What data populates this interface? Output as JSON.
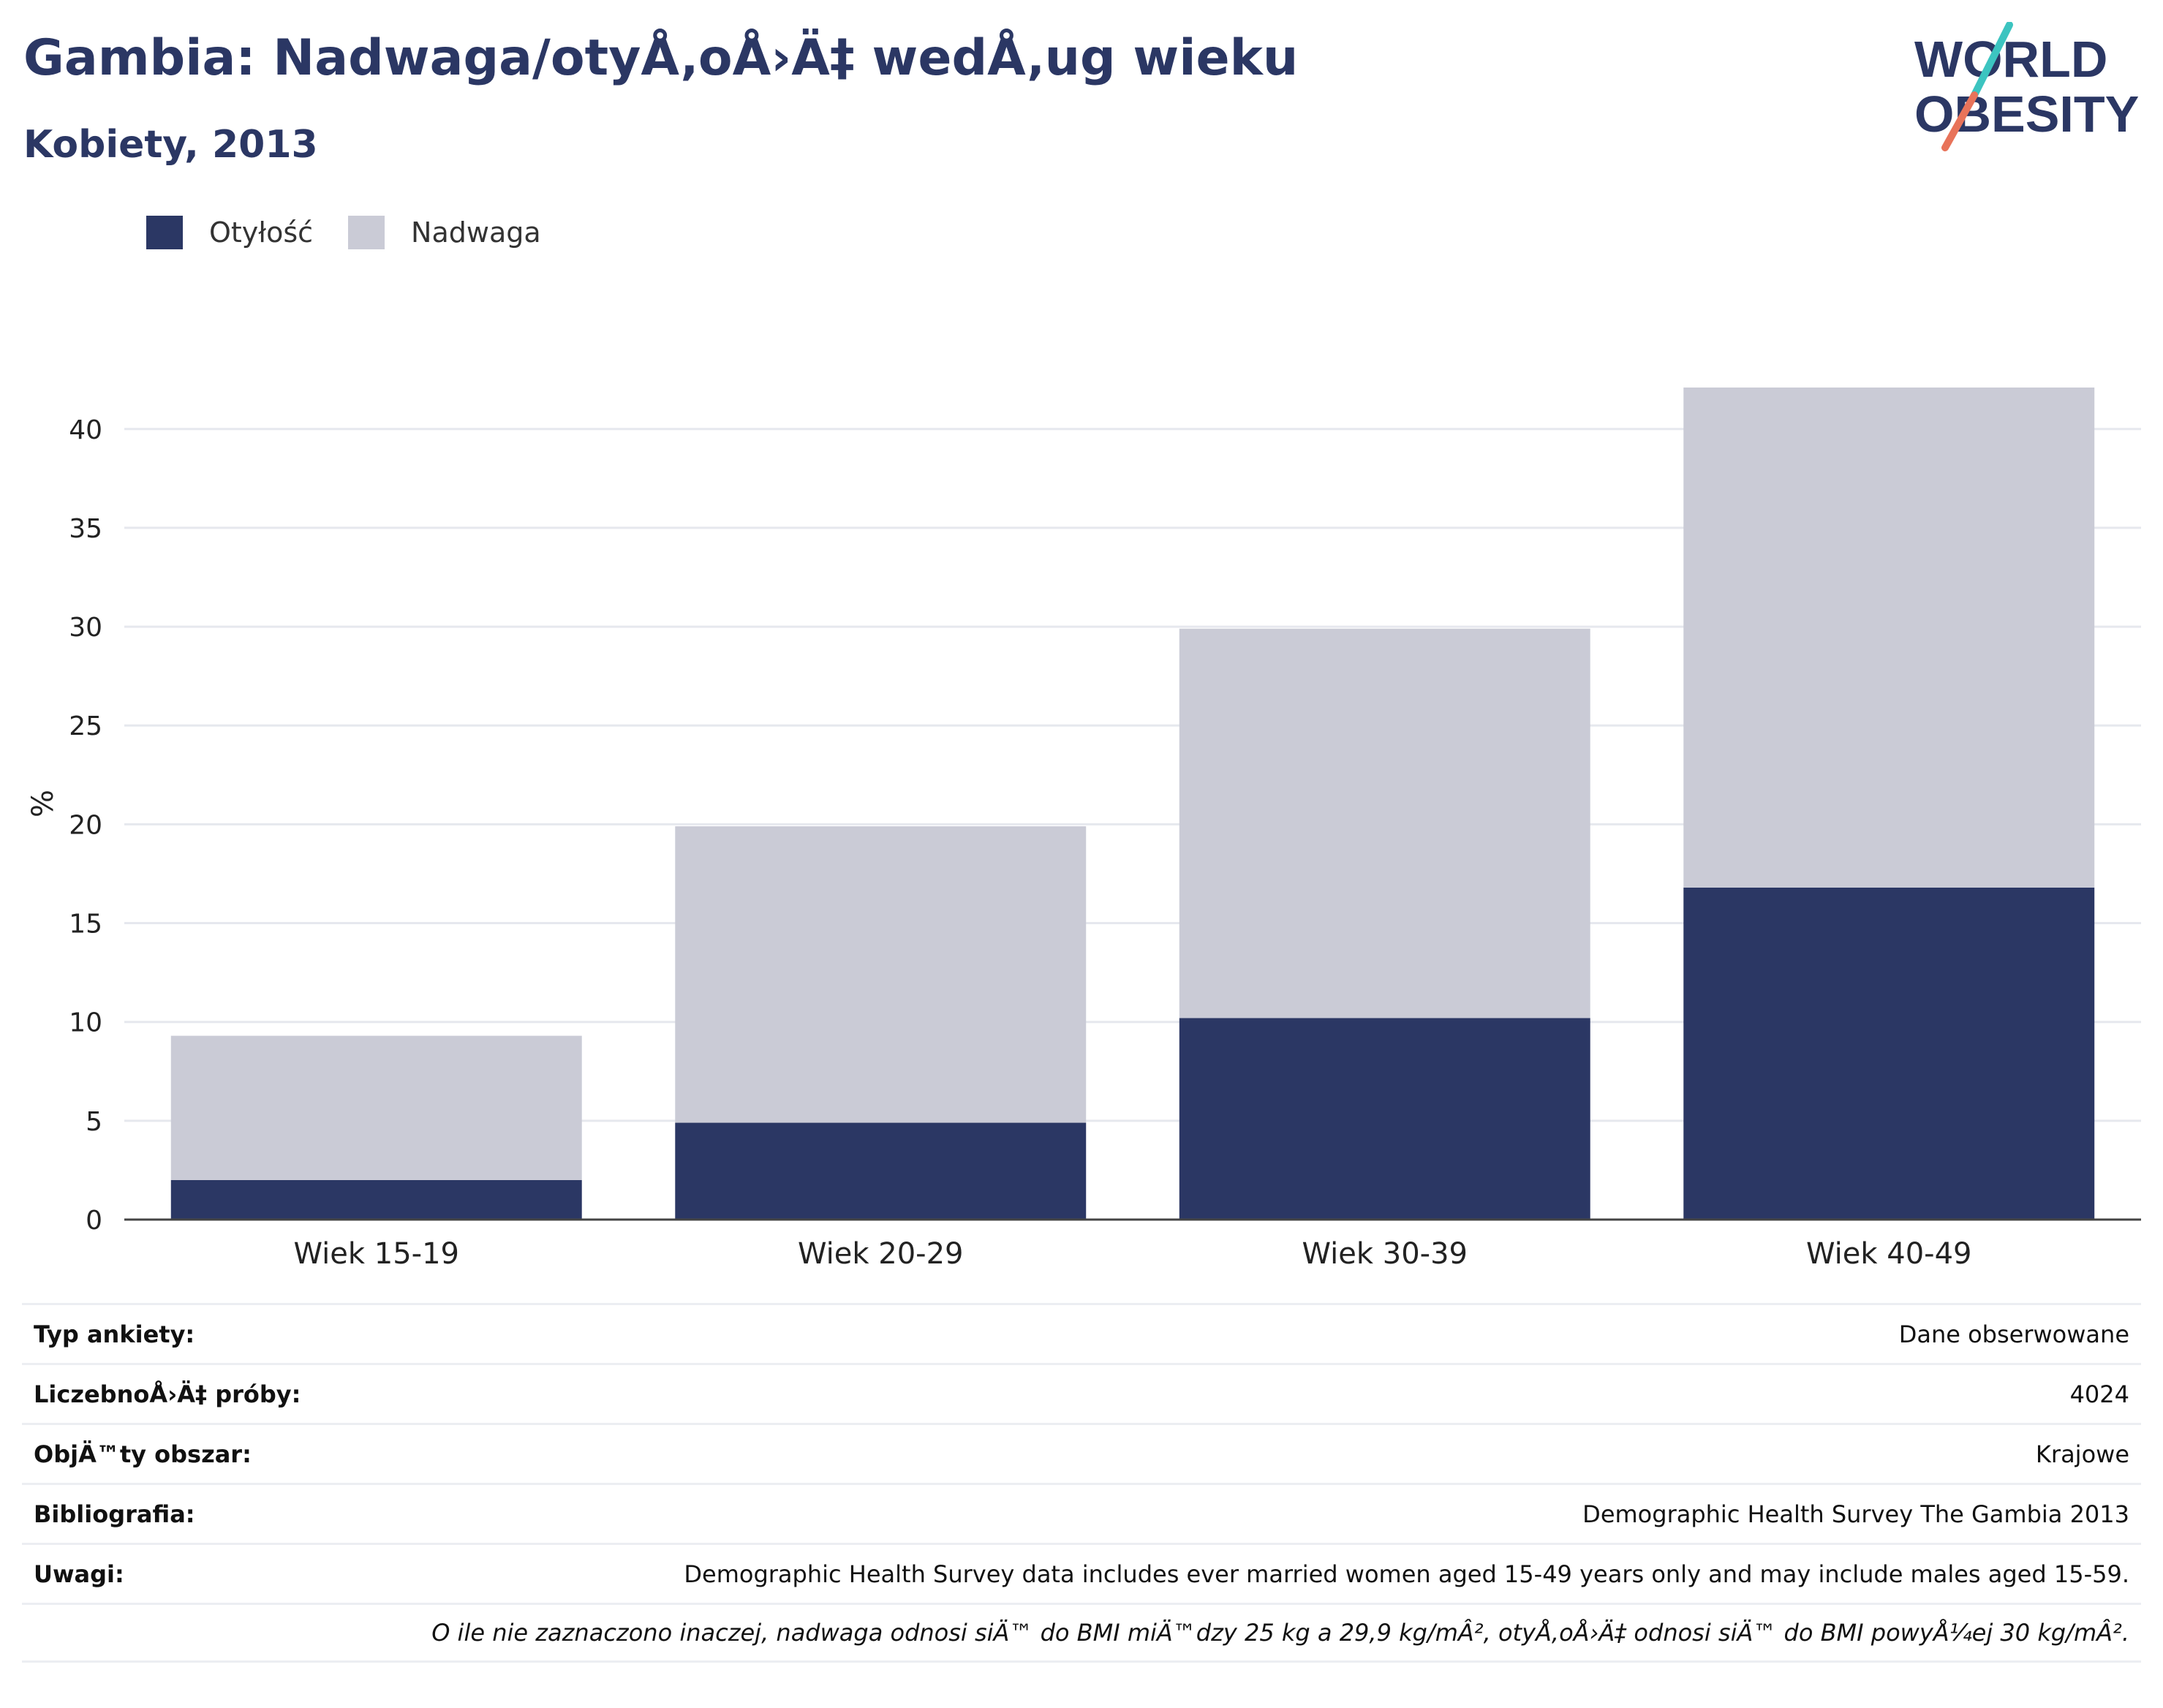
{
  "header": {
    "title": "Gambia: Nadwaga/otyÅ‚oÅ›Ä‡ wedÅ‚ug wieku",
    "subtitle": "Kobiety, 2013"
  },
  "logo": {
    "line1": "WORLD",
    "line2": "OBESITY",
    "icon": "world-obesity-logo"
  },
  "colors": {
    "obesity": "#2b3764",
    "overweight": "#cacbd6",
    "title": "#2b3764",
    "logo_teal": "#3cc4c0",
    "logo_coral": "#e8735a"
  },
  "chart_data": {
    "type": "bar",
    "stacked": true,
    "categories": [
      "Wiek 15-19",
      "Wiek 20-29",
      "Wiek 30-39",
      "Wiek 40-49"
    ],
    "series": [
      {
        "name": "Otyłość",
        "values": [
          2.0,
          4.9,
          10.2,
          16.8
        ]
      },
      {
        "name": "Nadwaga",
        "values": [
          7.3,
          15.0,
          19.7,
          25.3
        ]
      }
    ],
    "ylabel": "%",
    "xlabel": "",
    "ylim": [
      0,
      42.1
    ],
    "yticks": [
      0,
      5,
      10,
      15,
      20,
      25,
      30,
      35,
      40
    ],
    "grid": true,
    "legend_position": "top-left"
  },
  "info": {
    "rows": [
      {
        "label": "Typ ankiety:",
        "value": "Dane obserwowane"
      },
      {
        "label": "LiczebnoÅ›Ä‡ próby:",
        "value": "4024"
      },
      {
        "label": "ObjÄ™ty obszar:",
        "value": "Krajowe"
      },
      {
        "label": "Bibliografia:",
        "value": "Demographic Health Survey The Gambia 2013"
      },
      {
        "label": "Uwagi:",
        "value": "Demographic Health Survey data includes ever married women aged 15-49 years only and may include males aged 15-59."
      }
    ],
    "note": "O ile nie zaznaczono inaczej, nadwaga odnosi siÄ™ do BMI miÄ™dzy 25 kg a 29,9 kg/mÂ², otyÅ‚oÅ›Ä‡ odnosi siÄ™ do BMI powyÅ¼ej 30 kg/mÂ²."
  }
}
